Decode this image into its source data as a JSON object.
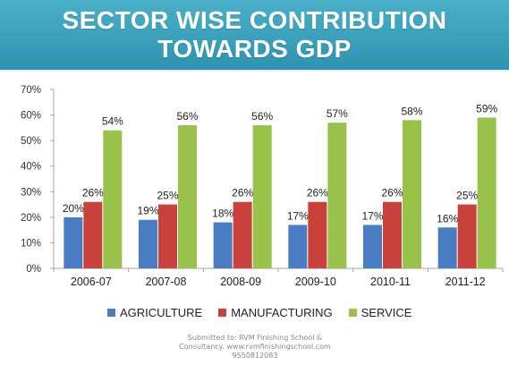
{
  "banner": {
    "title_line1": "SECTOR WISE CONTRIBUTION",
    "title_line2": "TOWARDS GDP"
  },
  "colors": {
    "banner": "#3aa6c2",
    "agriculture": "#4a7cc3",
    "manufacturing": "#c9413b",
    "service": "#98c24a"
  },
  "chart_data": {
    "type": "bar",
    "title": "SECTOR WISE CONTRIBUTION TOWARDS GDP",
    "categories": [
      "2006-07",
      "2007-08",
      "2008-09",
      "2009-10",
      "2010-11",
      "2011-12"
    ],
    "series": [
      {
        "name": "AGRICULTURE",
        "values": [
          20,
          19,
          18,
          17,
          17,
          16
        ],
        "labels": [
          "20%",
          "19%",
          "18%",
          "17%",
          "17%",
          "16%"
        ]
      },
      {
        "name": "MANUFACTURING",
        "values": [
          26,
          25,
          26,
          26,
          26,
          25
        ],
        "labels": [
          "26%",
          "25%",
          "26%",
          "26%",
          "26%",
          "25%"
        ]
      },
      {
        "name": "SERVICE",
        "values": [
          54,
          56,
          56,
          57,
          58,
          59
        ],
        "labels": [
          "54%",
          "56%",
          "56%",
          "57%",
          "58%",
          "59%"
        ]
      }
    ],
    "ylim": [
      0,
      70
    ],
    "yticks": [
      "0%",
      "10%",
      "20%",
      "30%",
      "40%",
      "50%",
      "60%",
      "70%"
    ],
    "legend": "bottom",
    "grid": false
  },
  "footer": {
    "line1": "Submitted to: RVM Finishing School &",
    "line2": "Consultancy. www.rvmfinishingschool.com",
    "line3": "9550812083"
  }
}
